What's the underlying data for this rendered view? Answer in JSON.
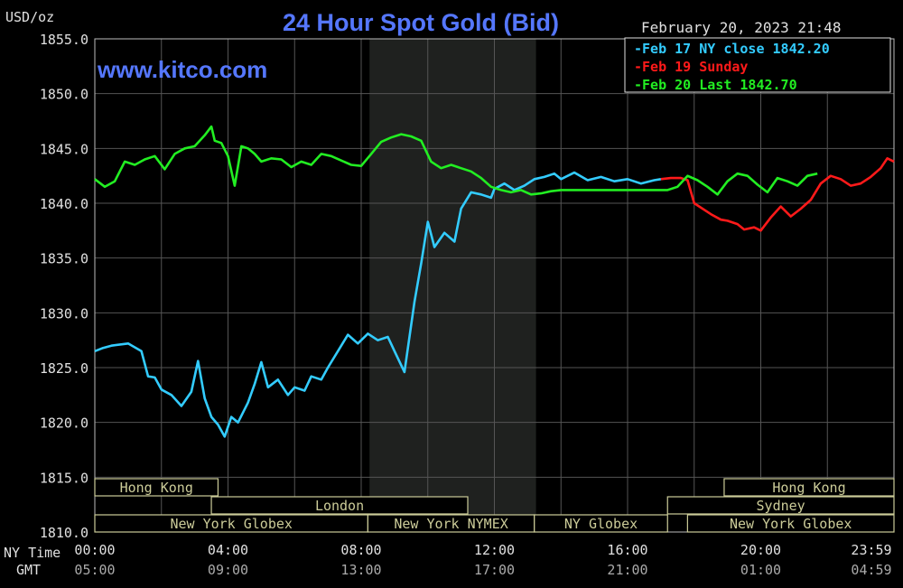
{
  "chart_data": {
    "type": "line",
    "title": "24 Hour Spot Gold (Bid)",
    "watermark": "www.kitco.com",
    "unit_label": "USD/oz",
    "timestamp": "February 20, 2023 21:48",
    "ylim": [
      1810,
      1855
    ],
    "y_ticks": [
      "1855.0",
      "1850.0",
      "1845.0",
      "1840.0",
      "1835.0",
      "1830.0",
      "1825.0",
      "1820.0",
      "1815.0",
      "1810.0"
    ],
    "x_ticks_ny": [
      "00:00",
      "04:00",
      "08:00",
      "12:00",
      "16:00",
      "20:00",
      "23:59"
    ],
    "x_ticks_gmt": [
      "05:00",
      "09:00",
      "13:00",
      "17:00",
      "21:00",
      "01:00",
      "04:59"
    ],
    "row_label_ny": "NY Time",
    "row_label_gmt": "GMT",
    "colors": {
      "cyan": "#33ccff",
      "red": "#ff1a1a",
      "green": "#22ee22",
      "axis": "#e0e0e0",
      "title": "#5577ff",
      "grid": "#555555",
      "session": "#cccc99"
    },
    "legend": [
      {
        "label": "Feb 17 NY close 1842.20",
        "color": "#33ccff"
      },
      {
        "label": "Feb 19 Sunday",
        "color": "#ff1a1a"
      },
      {
        "label": "Feb 20 Last 1842.70",
        "color": "#22ee22"
      }
    ],
    "sessions": [
      {
        "label": "Hong Kong",
        "row": 0,
        "start": 0,
        "end": 3.7
      },
      {
        "label": "London",
        "row": 1,
        "start": 3.5,
        "end": 11.2
      },
      {
        "label": "New York Globex",
        "row": 2,
        "start": 0,
        "end": 8.2
      },
      {
        "label": "New York NYMEX",
        "row": 2,
        "start": 8.2,
        "end": 13.2
      },
      {
        "label": "NY Globex",
        "row": 2,
        "start": 13.2,
        "end": 17.2
      },
      {
        "label": "Hong Kong",
        "row": 0,
        "start": 18.9,
        "end": 24
      },
      {
        "label": "Sydney",
        "row": 1,
        "start": 17.2,
        "end": 24
      },
      {
        "label": "New York Globex",
        "row": 2,
        "start": 17.8,
        "end": 24
      }
    ],
    "series": [
      {
        "name": "Feb 17 NY close 1842.20",
        "color": "#33ccff",
        "x": [
          0,
          0.25,
          0.5,
          1,
          1.4,
          1.6,
          1.8,
          2,
          2.3,
          2.6,
          2.9,
          3.1,
          3.3,
          3.5,
          3.7,
          3.9,
          4.1,
          4.3,
          4.6,
          4.8,
          5,
          5.2,
          5.5,
          5.8,
          6,
          6.3,
          6.5,
          6.8,
          7,
          7.3,
          7.6,
          7.9,
          8.2,
          8.5,
          8.8,
          9,
          9.3,
          9.6,
          9.8,
          10,
          10.2,
          10.5,
          10.8,
          11,
          11.3,
          11.6,
          11.9,
          12,
          12.3,
          12.6,
          12.9,
          13.2,
          13.5,
          13.8,
          14,
          14.4,
          14.8,
          15.2,
          15.6,
          16,
          16.4,
          16.8,
          17
        ],
        "y": [
          1826.5,
          1826.8,
          1827,
          1827.2,
          1826.5,
          1824.2,
          1824.1,
          1823,
          1822.5,
          1821.5,
          1822.8,
          1825.6,
          1822.2,
          1820.5,
          1819.8,
          1818.7,
          1820.5,
          1820,
          1821.8,
          1823.5,
          1825.5,
          1823.2,
          1823.9,
          1822.5,
          1823.2,
          1822.9,
          1824.2,
          1823.9,
          1825,
          1826.5,
          1828,
          1827.2,
          1828.1,
          1827.5,
          1827.8,
          1826.5,
          1824.6,
          1831,
          1834.5,
          1838.3,
          1836,
          1837.3,
          1836.5,
          1839.5,
          1841,
          1840.8,
          1840.5,
          1841.3,
          1841.8,
          1841.2,
          1841.6,
          1842.2,
          1842.4,
          1842.7,
          1842.2,
          1842.8,
          1842.1,
          1842.4,
          1842,
          1842.2,
          1841.8,
          1842.1,
          1842.2
        ]
      },
      {
        "name": "Feb 19 Sunday",
        "color": "#ff1a1a",
        "x": [
          17,
          17.3,
          17.6,
          17.8,
          18,
          18.5,
          18.8,
          19,
          19.3,
          19.5,
          19.8,
          20,
          20.3,
          20.6,
          20.9,
          21.2,
          21.5,
          21.8,
          22.1,
          22.4,
          22.7,
          23,
          23.3,
          23.6,
          23.8,
          24
        ],
        "y": [
          1842.2,
          1842.3,
          1842.3,
          1842.1,
          1840,
          1839,
          1838.5,
          1838.4,
          1838.1,
          1837.6,
          1837.8,
          1837.5,
          1838.7,
          1839.7,
          1838.8,
          1839.5,
          1840.3,
          1841.8,
          1842.5,
          1842.2,
          1841.6,
          1841.8,
          1842.4,
          1843.2,
          1844.1,
          1843.8
        ]
      },
      {
        "name": "Feb 20 Last 1842.70",
        "color": "#22ee22",
        "x": [
          0,
          0.3,
          0.6,
          0.9,
          1.2,
          1.5,
          1.8,
          2.1,
          2.4,
          2.7,
          3,
          3.3,
          3.5,
          3.6,
          3.8,
          4,
          4.2,
          4.4,
          4.6,
          4.8,
          5,
          5.3,
          5.6,
          5.9,
          6.2,
          6.5,
          6.8,
          7.1,
          7.4,
          7.7,
          8,
          8.3,
          8.6,
          8.9,
          9.2,
          9.5,
          9.8,
          10.1,
          10.4,
          10.7,
          11,
          11.3,
          11.6,
          11.9,
          12.2,
          12.5,
          12.8,
          13.1,
          13.4,
          13.7,
          14,
          14.5,
          15,
          15.5,
          16,
          16.5,
          17,
          17.2,
          17.5,
          17.8,
          18.1,
          18.4,
          18.7,
          19,
          19.3,
          19.6,
          19.9,
          20.2,
          20.5,
          20.8,
          21.1,
          21.4,
          21.7
        ],
        "y": [
          1842.2,
          1841.5,
          1842,
          1843.8,
          1843.5,
          1844,
          1844.3,
          1843.1,
          1844.5,
          1845,
          1845.2,
          1846.2,
          1847,
          1845.7,
          1845.5,
          1844.3,
          1841.6,
          1845.2,
          1845,
          1844.5,
          1843.8,
          1844.1,
          1844,
          1843.3,
          1843.8,
          1843.5,
          1844.5,
          1844.3,
          1843.9,
          1843.5,
          1843.4,
          1844.5,
          1845.6,
          1846,
          1846.3,
          1846.1,
          1845.7,
          1843.8,
          1843.2,
          1843.5,
          1843.2,
          1842.9,
          1842.3,
          1841.5,
          1841.2,
          1841,
          1841.2,
          1840.8,
          1840.9,
          1841.1,
          1841.2,
          1841.2,
          1841.2,
          1841.2,
          1841.2,
          1841.2,
          1841.2,
          1841.2,
          1841.5,
          1842.5,
          1842.1,
          1841.5,
          1840.8,
          1842,
          1842.7,
          1842.5,
          1841.7,
          1841,
          1842.3,
          1842,
          1841.6,
          1842.5,
          1842.7
        ]
      }
    ]
  }
}
